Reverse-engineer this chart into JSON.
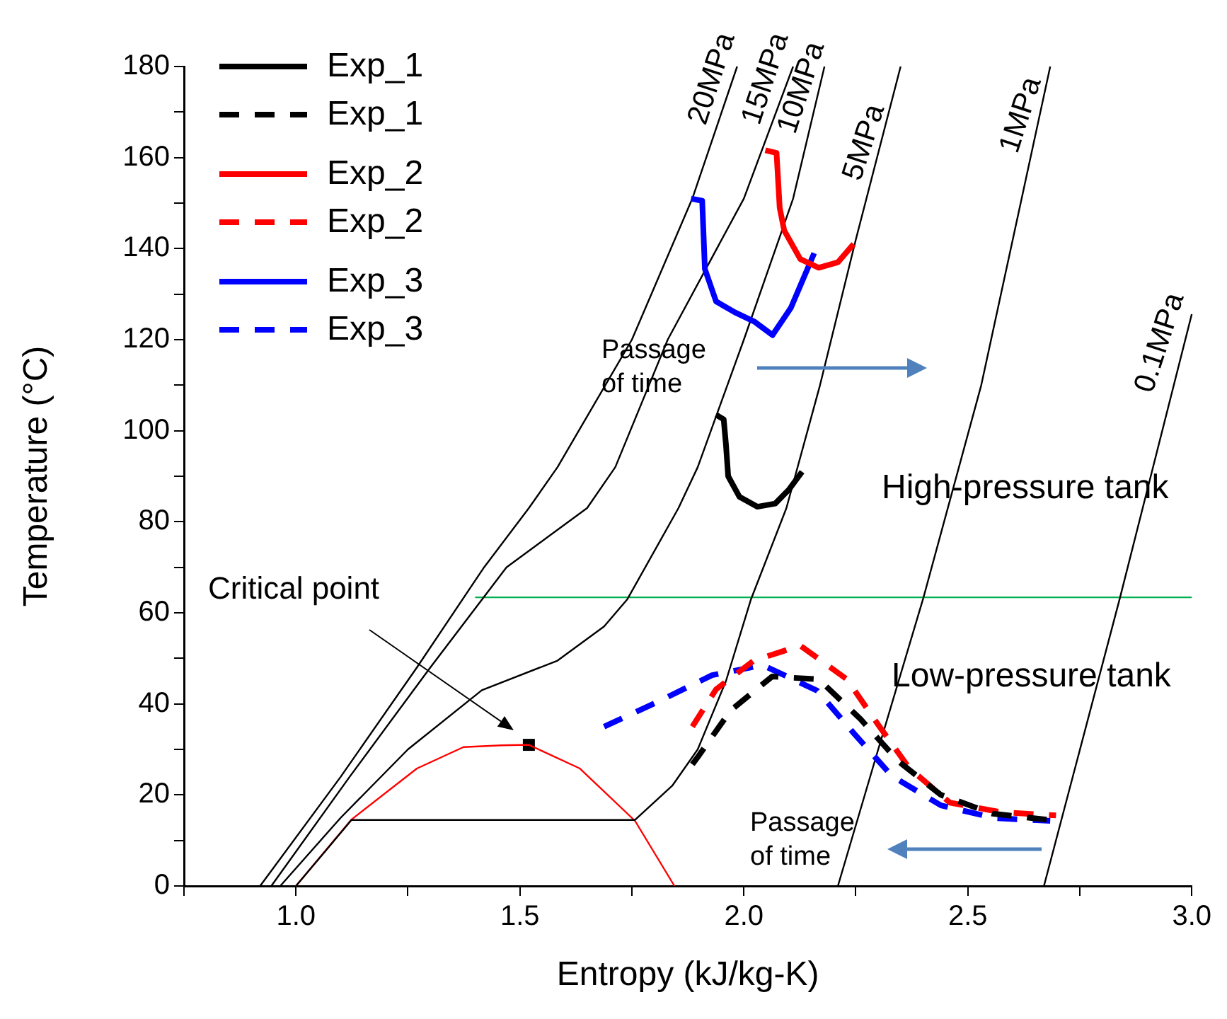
{
  "chart_data": {
    "type": "line",
    "xlabel": "Entropy (kJ/kg-K)",
    "ylabel": "Temperature (°C)",
    "xlim": [
      0.75,
      3.0
    ],
    "xticks": [
      {
        "value": 0.75,
        "label": null
      },
      {
        "value": 1,
        "label": "1.0"
      },
      {
        "value": 1.25,
        "label": null
      },
      {
        "value": 1.5,
        "label": "1.5"
      },
      {
        "value": 1.75,
        "label": null
      },
      {
        "value": 2,
        "label": "2.0"
      },
      {
        "value": 2.25,
        "label": null
      },
      {
        "value": 2.5,
        "label": "2.5"
      },
      {
        "value": 2.75,
        "label": null
      },
      {
        "value": 3,
        "label": "3.0"
      }
    ],
    "ylim": [
      0,
      180
    ],
    "yticks": [
      0,
      {
        "value": 10,
        "label": null
      },
      20,
      {
        "value": 30,
        "label": null
      },
      40,
      {
        "value": 50,
        "label": null
      },
      60,
      {
        "value": 70,
        "label": null
      },
      80,
      {
        "value": 90,
        "label": null
      },
      100,
      {
        "value": 110,
        "label": null
      },
      120,
      {
        "value": 130,
        "label": null
      },
      140,
      {
        "value": 150,
        "label": null
      },
      160,
      {
        "value": 170,
        "label": null
      },
      180
    ],
    "grid": false,
    "legend": "top left",
    "marker": "none",
    "line_style": "solid",
    "series": [
      {
        "name": "Exp_1",
        "color": "#000000",
        "x": [
          1.938,
          1.955,
          1.96,
          1.965,
          1.99,
          2.03,
          2.07,
          2.1,
          2.13
        ],
        "values": [
          103.5,
          102.5,
          97,
          90,
          85.5,
          83.3,
          84,
          87,
          91
        ]
      },
      {
        "name": "Exp_1",
        "color": "#000000",
        "line_style": "dashed",
        "x": [
          1.885,
          1.897,
          1.97,
          2.063,
          2.167,
          2.26,
          2.345,
          2.44,
          2.555,
          2.7
        ],
        "values": [
          26.7,
          28.3,
          38.5,
          46,
          45.4,
          36.7,
          27.4,
          20,
          15.9,
          14.3
        ]
      },
      {
        "name": "Exp_2",
        "color": "#ff0000",
        "x": [
          2.048,
          2.073,
          2.08,
          2.09,
          2.126,
          2.167,
          2.21,
          2.245
        ],
        "values": [
          161.6,
          161,
          149,
          144,
          137.7,
          135.8,
          137,
          141
        ]
      },
      {
        "name": "Exp_2",
        "color": "#ff0000",
        "line_style": "dashed",
        "x": [
          1.885,
          1.938,
          2.022,
          2.126,
          2.23,
          2.3,
          2.37,
          2.46,
          2.574,
          2.697
        ],
        "values": [
          35,
          43.2,
          49.5,
          52.8,
          45.4,
          35.4,
          25.8,
          18.3,
          16.2,
          15.5
        ]
      },
      {
        "name": "Exp_3",
        "color": "#0000ff",
        "x": [
          1.882,
          1.907,
          1.913,
          1.938,
          1.98,
          2.023,
          2.064,
          2.105,
          2.157
        ],
        "values": [
          151,
          150.5,
          135.5,
          128.4,
          126,
          124,
          121,
          127,
          139
        ]
      },
      {
        "name": "Exp_3",
        "color": "#0000ff",
        "line_style": "dashed",
        "x": [
          1.688,
          1.813,
          1.929,
          2.042,
          2.164,
          2.245,
          2.33,
          2.44,
          2.56,
          2.684
        ],
        "values": [
          35,
          40.7,
          46.3,
          48.5,
          42.9,
          33.6,
          24.2,
          17.7,
          14.9,
          14.3
        ]
      },
      {
        "color": "#000000",
        "x": [
          0.92,
          1.1,
          1.27,
          1.42,
          1.52,
          1.584,
          1.75,
          1.885,
          1.985
        ],
        "values": [
          0,
          24,
          48,
          70,
          83,
          92,
          120,
          151,
          180
        ]
      },
      {
        "color": "#000000",
        "x": [
          0.945,
          1.12,
          1.3,
          1.47,
          1.65,
          1.713,
          1.83,
          2.0,
          2.11
        ],
        "values": [
          0,
          24,
          48,
          70,
          83,
          92,
          120,
          151,
          180
        ]
      },
      {
        "color": "#000000",
        "x": [
          0.965,
          1.1,
          1.25,
          1.415,
          1.584,
          1.688,
          1.74,
          1.854,
          1.897,
          2.0,
          2.11,
          2.18
        ],
        "values": [
          0,
          15,
          30,
          43,
          49.5,
          57,
          63,
          83,
          92,
          120,
          151,
          180
        ]
      },
      {
        "color": "#000000",
        "x": [
          1.0,
          1.06,
          1.124,
          1.757,
          1.84,
          1.897,
          1.96,
          2.016,
          2.095,
          2.17,
          2.25,
          2.35
        ],
        "values": [
          0,
          7,
          14.5,
          14.5,
          22,
          30,
          45,
          63,
          83,
          110,
          142,
          180
        ]
      },
      {
        "color": "#000000",
        "x": [
          2.21,
          2.3,
          2.4,
          2.53,
          2.684
        ],
        "values": [
          0,
          30,
          63,
          110,
          180
        ]
      },
      {
        "color": "#000000",
        "x": [
          2.67,
          2.84,
          3.0
        ],
        "values": [
          0,
          63.4,
          125.6
        ]
      },
      {
        "color": "#ff0000",
        "x": [
          1.0,
          1.124,
          1.27,
          1.374,
          1.459,
          1.52,
          1.634,
          1.757,
          1.845
        ],
        "values": [
          0,
          14.6,
          25.8,
          30.5,
          30.9,
          31,
          25.8,
          14.3,
          0
        ]
      },
      {
        "color": "#00b050",
        "x": [
          1.4,
          3.0
        ],
        "values": [
          63.4,
          63.4
        ]
      },
      {
        "type": "scatter",
        "marker": "square",
        "color": "#000000",
        "x": [
          1.52
        ],
        "values": [
          31
        ]
      }
    ],
    "annotations": [
      {
        "text": "20MPa",
        "x": 1.97,
        "y": 176
      },
      {
        "text": "15MPa",
        "x": 2.09,
        "y": 176
      },
      {
        "text": "10MPa",
        "x": 2.17,
        "y": 174
      },
      {
        "text": "5MPa",
        "x": 2.31,
        "y": 162
      },
      {
        "text": "1MPa",
        "x": 2.66,
        "y": 168
      },
      {
        "text": "0.1MPa",
        "x": 2.97,
        "y": 118
      },
      "Critical point",
      "Passage of time",
      "Passage of time",
      "High-pressure tank",
      "Low-pressure tank"
    ]
  }
}
